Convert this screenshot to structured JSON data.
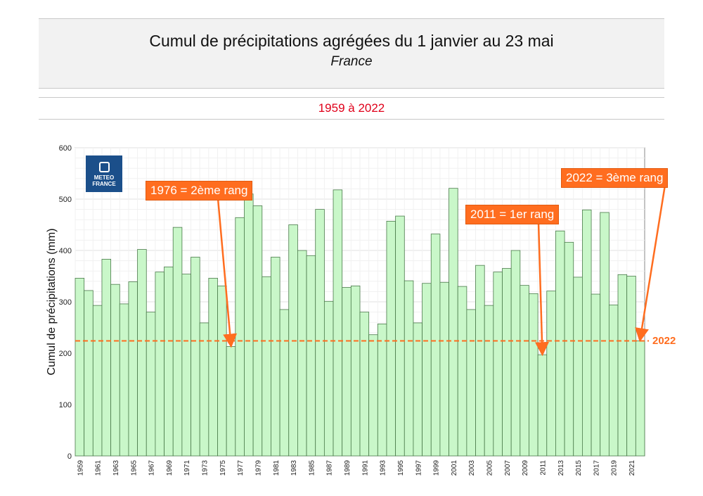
{
  "header": {
    "title": "Cumul de précipitations agrégées du 1 janvier au 23 mai",
    "subtitle": "France",
    "period": "1959 à 2022"
  },
  "logo": {
    "line1": "METEO",
    "line2": "FRANCE",
    "icon": "meteo-france-logo-icon"
  },
  "colors": {
    "bar_fill": "#c9f7c9",
    "bar_stroke": "#4a7a4a",
    "accent": "#ff6d1f",
    "period_text": "#e0001a"
  },
  "chart_data": {
    "type": "bar",
    "ylabel": "Cumul de précipitations (mm)",
    "ylim": [
      0,
      600
    ],
    "yticks": [
      0,
      100,
      200,
      300,
      400,
      500,
      600
    ],
    "grid": true,
    "categories": [
      "1959",
      "1960",
      "1961",
      "1962",
      "1963",
      "1964",
      "1965",
      "1966",
      "1967",
      "1968",
      "1969",
      "1970",
      "1971",
      "1972",
      "1973",
      "1974",
      "1975",
      "1976",
      "1977",
      "1978",
      "1979",
      "1980",
      "1981",
      "1982",
      "1983",
      "1984",
      "1985",
      "1986",
      "1987",
      "1988",
      "1989",
      "1990",
      "1991",
      "1992",
      "1993",
      "1994",
      "1995",
      "1996",
      "1997",
      "1998",
      "1999",
      "2000",
      "2001",
      "2002",
      "2003",
      "2004",
      "2005",
      "2006",
      "2007",
      "2008",
      "2009",
      "2010",
      "2011",
      "2012",
      "2013",
      "2014",
      "2015",
      "2016",
      "2017",
      "2018",
      "2019",
      "2020",
      "2021",
      "2022"
    ],
    "xtick_labels": [
      "1959",
      "1961",
      "1963",
      "1965",
      "1967",
      "1969",
      "1971",
      "1973",
      "1975",
      "1977",
      "1979",
      "1981",
      "1983",
      "1985",
      "1987",
      "1989",
      "1991",
      "1993",
      "1995",
      "1997",
      "1999",
      "2001",
      "2003",
      "2005",
      "2007",
      "2009",
      "2011",
      "2013",
      "2015",
      "2017",
      "2019",
      "2021"
    ],
    "values": [
      346,
      322,
      293,
      383,
      334,
      296,
      339,
      402,
      280,
      358,
      368,
      445,
      354,
      387,
      259,
      346,
      331,
      213,
      464,
      510,
      487,
      349,
      387,
      285,
      450,
      400,
      390,
      480,
      301,
      518,
      328,
      331,
      280,
      236,
      257,
      457,
      467,
      341,
      259,
      336,
      432,
      338,
      521,
      330,
      285,
      371,
      293,
      358,
      365,
      400,
      332,
      316,
      197,
      321,
      438,
      416,
      348,
      479,
      315,
      474,
      294,
      353,
      350,
      224
    ],
    "reference": {
      "value": 224,
      "label": "2022"
    },
    "annotations": [
      {
        "text": "1976 = 2ème rang",
        "category": "1976"
      },
      {
        "text": "2011 = 1er rang",
        "category": "2011"
      },
      {
        "text": "2022 = 3ème rang",
        "category": "2022"
      }
    ]
  }
}
